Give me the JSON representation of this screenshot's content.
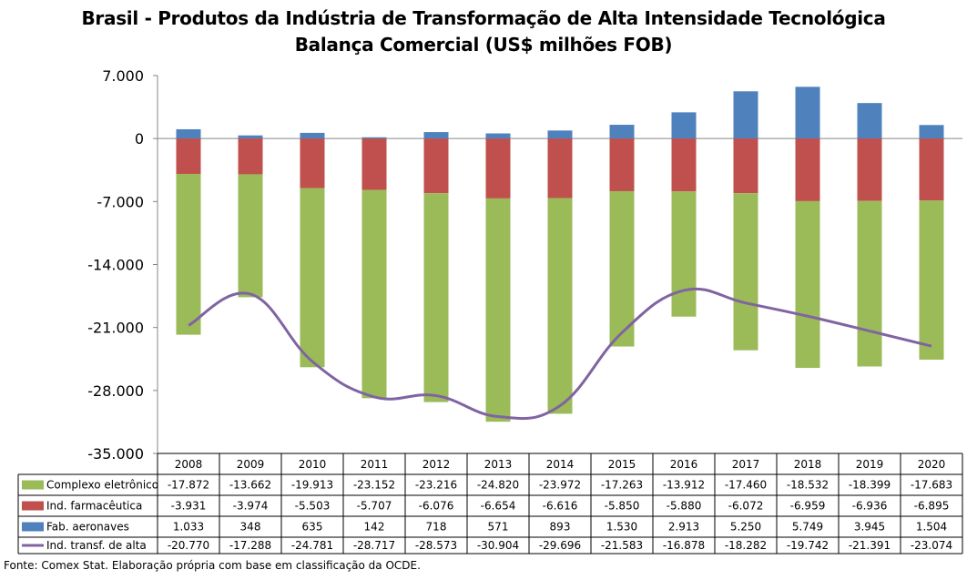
{
  "title": "Brasil - Produtos da Indústria de Transformação de Alta Intensidade Tecnológica",
  "subtitle": "Balança Comercial (US$ milhões FOB)",
  "source": "Fonte: Comex Stat. Elaboração própria com base em classificação da OCDE.",
  "colors": {
    "eletronico": "#9BBB59",
    "farmaceutica": "#C0504D",
    "aeronaves": "#4F81BD",
    "total_line": "#8064A2"
  },
  "chart_data": {
    "type": "bar",
    "stacked": true,
    "categories": [
      "2008",
      "2009",
      "2010",
      "2011",
      "2012",
      "2013",
      "2014",
      "2015",
      "2016",
      "2017",
      "2018",
      "2019",
      "2020"
    ],
    "ylim": [
      -35000,
      7000
    ],
    "yticks": [
      7000,
      0,
      -7000,
      -14000,
      -21000,
      -28000,
      -35000
    ],
    "ytick_labels": [
      "7.000",
      "0",
      "-7.000",
      "-14.000",
      "-21.000",
      "-28.000",
      "-35.000"
    ],
    "grid": false,
    "legend": "data-table",
    "series": [
      {
        "name": "Complexo eletrônico",
        "type": "bar",
        "color_key": "eletronico",
        "values": [
          -17872,
          -13662,
          -19913,
          -23152,
          -23216,
          -24820,
          -23972,
          -17263,
          -13912,
          -17460,
          -18532,
          -18399,
          -17683
        ],
        "labels": [
          "-17.872",
          "-13.662",
          "-19.913",
          "-23.152",
          "-23.216",
          "-24.820",
          "-23.972",
          "-17.263",
          "-13.912",
          "-17.460",
          "-18.532",
          "-18.399",
          "-17.683"
        ]
      },
      {
        "name": "Ind. farmacêutica",
        "type": "bar",
        "color_key": "farmaceutica",
        "values": [
          -3931,
          -3974,
          -5503,
          -5707,
          -6076,
          -6654,
          -6616,
          -5850,
          -5880,
          -6072,
          -6959,
          -6936,
          -6895
        ],
        "labels": [
          "-3.931",
          "-3.974",
          "-5.503",
          "-5.707",
          "-6.076",
          "-6.654",
          "-6.616",
          "-5.850",
          "-5.880",
          "-6.072",
          "-6.959",
          "-6.936",
          "-6.895"
        ]
      },
      {
        "name": "Fab. aeronaves",
        "type": "bar",
        "color_key": "aeronaves",
        "values": [
          1033,
          348,
          635,
          142,
          718,
          571,
          893,
          1530,
          2913,
          5250,
          5749,
          3945,
          1504
        ],
        "labels": [
          "1.033",
          "348",
          "635",
          "142",
          "718",
          "571",
          "893",
          "1.530",
          "2.913",
          "5.250",
          "5.749",
          "3.945",
          "1.504"
        ]
      },
      {
        "name": "Ind. transf. de alta",
        "type": "line",
        "color_key": "total_line",
        "values": [
          -20770,
          -17288,
          -24781,
          -28717,
          -28573,
          -30904,
          -29696,
          -21583,
          -16878,
          -18282,
          -19742,
          -21391,
          -23074
        ],
        "labels": [
          "-20.770",
          "-17.288",
          "-24.781",
          "-28.717",
          "-28.573",
          "-30.904",
          "-29.696",
          "-21.583",
          "-16.878",
          "-18.282",
          "-19.742",
          "-21.391",
          "-23.074"
        ]
      }
    ]
  }
}
